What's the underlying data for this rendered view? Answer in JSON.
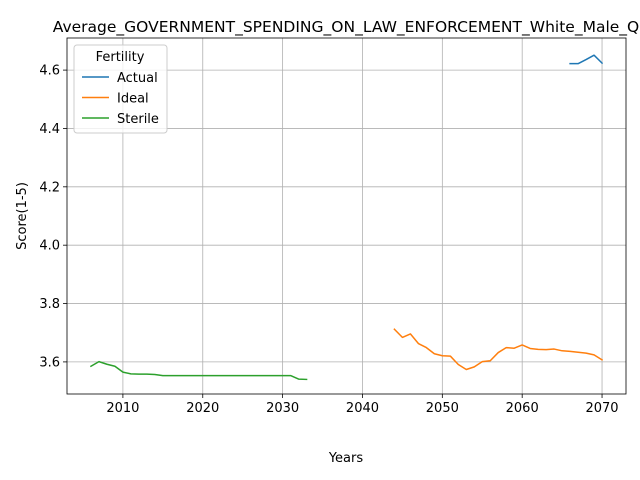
{
  "chart_data": {
    "type": "line",
    "title": "Average_GOVERNMENT_SPENDING_ON_LAW_ENFORCEMENT_White_Male_Q",
    "xlabel": "Years",
    "ylabel": "Score(1-5)",
    "xlim": [
      2003,
      2073
    ],
    "ylim": [
      3.49,
      4.71
    ],
    "xticks": [
      2010,
      2020,
      2030,
      2040,
      2050,
      2060,
      2070
    ],
    "yticks": [
      3.6,
      3.8,
      4.0,
      4.2,
      4.4,
      4.6
    ],
    "grid": true,
    "legend": {
      "title": "Fertility",
      "placement": "top-left"
    },
    "series": [
      {
        "name": "Actual",
        "color": "#1f77b4",
        "x": [
          2066,
          2067,
          2068,
          2069,
          2070
        ],
        "y": [
          4.622,
          4.622,
          4.636,
          4.651,
          4.624
        ]
      },
      {
        "name": "Ideal",
        "color": "#ff7f0e",
        "x": [
          2044,
          2045,
          2046,
          2047,
          2048,
          2049,
          2050,
          2051,
          2052,
          2053,
          2054,
          2055,
          2056,
          2057,
          2058,
          2059,
          2060,
          2061,
          2062,
          2063,
          2064,
          2065,
          2066,
          2067,
          2068,
          2069,
          2070
        ],
        "y": [
          3.712,
          3.684,
          3.696,
          3.663,
          3.649,
          3.628,
          3.621,
          3.62,
          3.591,
          3.574,
          3.583,
          3.601,
          3.604,
          3.632,
          3.649,
          3.647,
          3.658,
          3.646,
          3.643,
          3.642,
          3.644,
          3.638,
          3.636,
          3.633,
          3.63,
          3.624,
          3.607
        ]
      },
      {
        "name": "Sterile",
        "color": "#2ca02c",
        "x": [
          2006,
          2007,
          2008,
          2009,
          2010,
          2011,
          2012,
          2013,
          2014,
          2015,
          2016,
          2017,
          2018,
          2019,
          2020,
          2021,
          2022,
          2023,
          2024,
          2025,
          2026,
          2027,
          2028,
          2029,
          2030,
          2031,
          2032,
          2033
        ],
        "y": [
          3.585,
          3.601,
          3.592,
          3.585,
          3.565,
          3.559,
          3.558,
          3.558,
          3.557,
          3.553,
          3.553,
          3.553,
          3.553,
          3.553,
          3.553,
          3.553,
          3.553,
          3.553,
          3.553,
          3.553,
          3.553,
          3.553,
          3.553,
          3.553,
          3.553,
          3.553,
          3.541,
          3.54
        ]
      }
    ]
  }
}
